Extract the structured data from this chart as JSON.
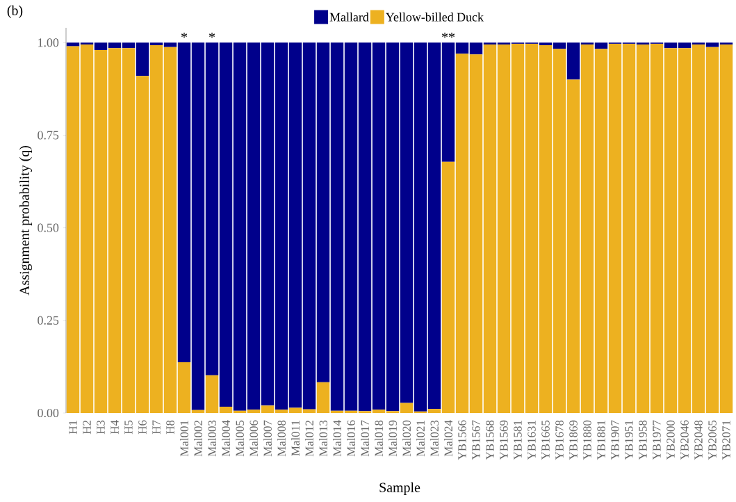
{
  "chart_data": {
    "type": "bar",
    "stacked": true,
    "xlabel": "Sample",
    "ylabel": "Assignment probability (q)",
    "categories": [
      "H1",
      "H2",
      "H3",
      "H4",
      "H5",
      "H6",
      "H7",
      "H8",
      "Mal001",
      "Mal002",
      "Mal003",
      "Mal004",
      "Mal005",
      "Mal006",
      "Mal007",
      "Mal008",
      "Mal011",
      "Mal012",
      "Mal013",
      "Mal014",
      "Mal016",
      "Mal017",
      "Mal018",
      "Mal019",
      "Mal020",
      "Mal021",
      "Mal023",
      "Mal024",
      "YB1566",
      "YB1567",
      "YB1568",
      "YB1569",
      "YB1581",
      "YB1631",
      "YB1665",
      "YB1678",
      "YB1869",
      "YB1880",
      "YB1881",
      "YB1907",
      "YB1951",
      "YB1958",
      "YB1977",
      "YB2000",
      "YB2046",
      "YB2048",
      "YB2065",
      "YB2071"
    ],
    "series": [
      {
        "name": "Yellow-billed Duck",
        "color": "#edb120",
        "values": [
          0.99,
          0.995,
          0.98,
          0.985,
          0.985,
          0.91,
          0.993,
          0.988,
          0.137,
          0.008,
          0.102,
          0.017,
          0.006,
          0.009,
          0.02,
          0.009,
          0.014,
          0.01,
          0.083,
          0.006,
          0.006,
          0.005,
          0.009,
          0.005,
          0.027,
          0.004,
          0.011,
          0.678,
          0.97,
          0.968,
          0.995,
          0.995,
          0.997,
          0.997,
          0.993,
          0.983,
          0.9,
          0.995,
          0.983,
          0.997,
          0.997,
          0.995,
          0.997,
          0.985,
          0.985,
          0.995,
          0.988,
          0.995
        ]
      },
      {
        "name": "Mallard",
        "color": "#00008b",
        "values": [
          0.01,
          0.005,
          0.02,
          0.015,
          0.015,
          0.09,
          0.007,
          0.012,
          0.863,
          0.992,
          0.898,
          0.983,
          0.994,
          0.991,
          0.98,
          0.991,
          0.986,
          0.99,
          0.917,
          0.994,
          0.994,
          0.995,
          0.991,
          0.995,
          0.973,
          0.996,
          0.989,
          0.322,
          0.03,
          0.032,
          0.005,
          0.005,
          0.003,
          0.003,
          0.007,
          0.017,
          0.1,
          0.005,
          0.017,
          0.003,
          0.003,
          0.005,
          0.003,
          0.015,
          0.015,
          0.005,
          0.012,
          0.005
        ]
      }
    ],
    "ylim": [
      0,
      1.04
    ],
    "yticks": [
      {
        "value": 0,
        "label": "0.00"
      },
      {
        "value": 0.25,
        "label": "0.25"
      },
      {
        "value": 0.5,
        "label": "0.50"
      },
      {
        "value": 0.75,
        "label": "0.75"
      },
      {
        "value": 1,
        "label": "1.00"
      }
    ],
    "legend": "top",
    "grid": false,
    "annotations": [
      {
        "text": "*",
        "x": "Mal001",
        "y": 1
      },
      {
        "text": "*",
        "x": "Mal003",
        "y": 1
      },
      {
        "text": "**",
        "x": "Mal024",
        "y": 1
      },
      "(b)"
    ]
  }
}
